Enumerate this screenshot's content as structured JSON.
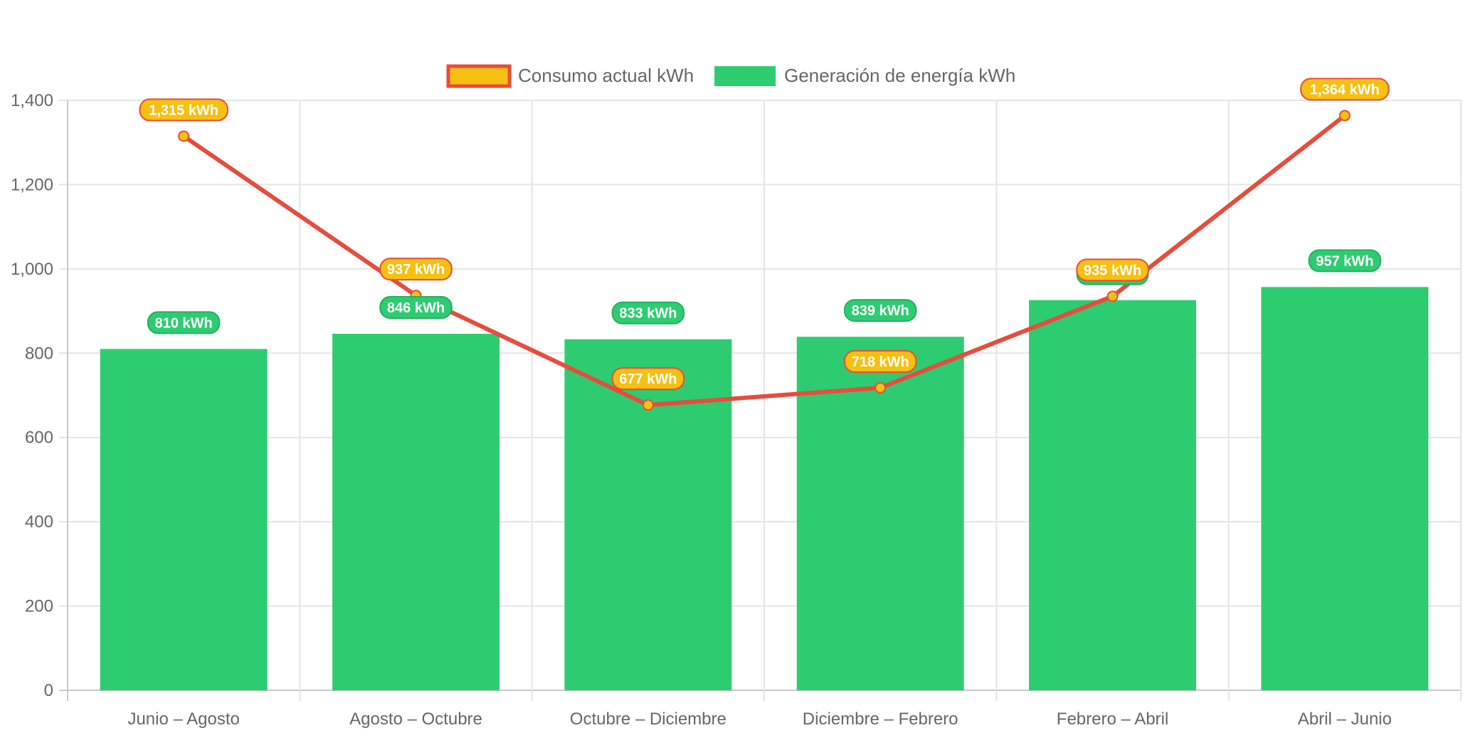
{
  "chart_data": {
    "type": "bar",
    "categories": [
      "Junio – Agosto",
      "Agosto – Octubre",
      "Octubre – Diciembre",
      "Diciembre – Febrero",
      "Febrero – Abril",
      "Abril – Junio"
    ],
    "series": [
      {
        "name": "Consumo actual kWh",
        "type": "line",
        "values": [
          1315,
          937,
          677,
          718,
          935,
          1364
        ],
        "labels": [
          "1,315 kWh",
          "937 kWh",
          "677 kWh",
          "718 kWh",
          "935 kWh",
          "1,364 kWh"
        ],
        "color": "#e74c3c",
        "fill_color": "#f5c012"
      },
      {
        "name": "Generación de energía kWh",
        "type": "bar",
        "values": [
          810,
          846,
          833,
          839,
          926,
          957
        ],
        "labels": [
          "810 kWh",
          "846 kWh",
          "833 kWh",
          "839 kWh",
          "",
          "957 kWh"
        ],
        "color": "#2ecc71"
      }
    ],
    "ylim": [
      0,
      1400
    ],
    "yticks": [
      0,
      200,
      400,
      600,
      800,
      1000,
      1200,
      1400
    ],
    "ytick_labels": [
      "0",
      "200",
      "400",
      "600",
      "800",
      "1,000",
      "1,200",
      "1,400"
    ],
    "grid": true,
    "legend": "top-center"
  }
}
